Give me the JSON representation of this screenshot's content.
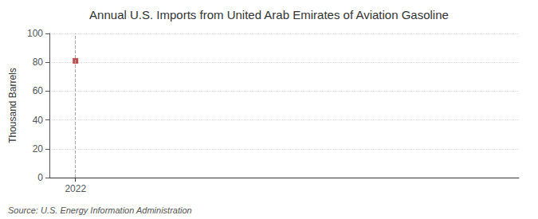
{
  "chart_data": {
    "type": "scatter",
    "title": "Annual U.S. Imports from United Arab Emirates of Aviation Gasoline",
    "y_label": "Thousand Barrels",
    "annotation": "Source: U.S. Energy Information Administration",
    "x": [
      2022
    ],
    "values": [
      81
    ],
    "color": "#aa2222",
    "marker": "square",
    "xlim": [
      2021.5,
      2030.5
    ],
    "xticks": [
      2022
    ],
    "ylim": [
      0,
      100
    ],
    "yticks": [
      0,
      20,
      40,
      60,
      80,
      100
    ],
    "vline": 2022,
    "grid": true
  }
}
